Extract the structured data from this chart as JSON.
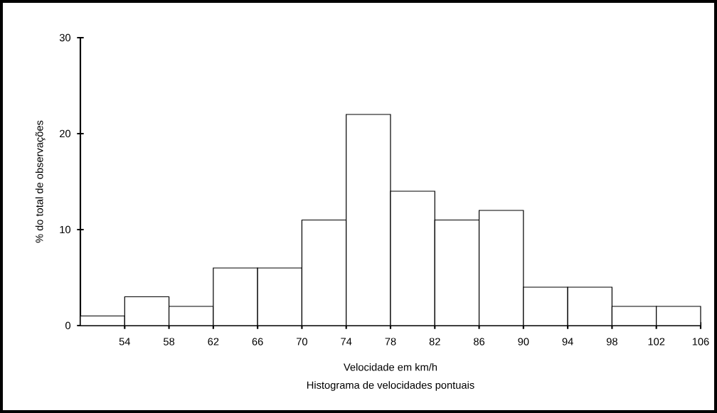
{
  "chart_data": {
    "type": "histogram",
    "xlabel": "Velocidade em km/h",
    "ylabel": "% do total de observações",
    "annotations": [
      "Histograma de velocidades pontuais"
    ],
    "bins": [
      50,
      54,
      58,
      62,
      66,
      70,
      74,
      78,
      82,
      86,
      90,
      94,
      98,
      102,
      106
    ],
    "values": [
      1,
      3,
      2,
      6,
      6,
      11,
      22,
      14,
      11,
      12,
      4,
      4,
      2,
      2
    ],
    "color": "#ffffff",
    "xlim": [
      50,
      106
    ],
    "xticks": [
      54,
      58,
      62,
      66,
      70,
      74,
      78,
      82,
      86,
      90,
      94,
      98,
      102,
      106
    ],
    "ylim": [
      0,
      30
    ],
    "yticks": [
      0,
      10,
      20,
      30
    ],
    "grid": false
  }
}
